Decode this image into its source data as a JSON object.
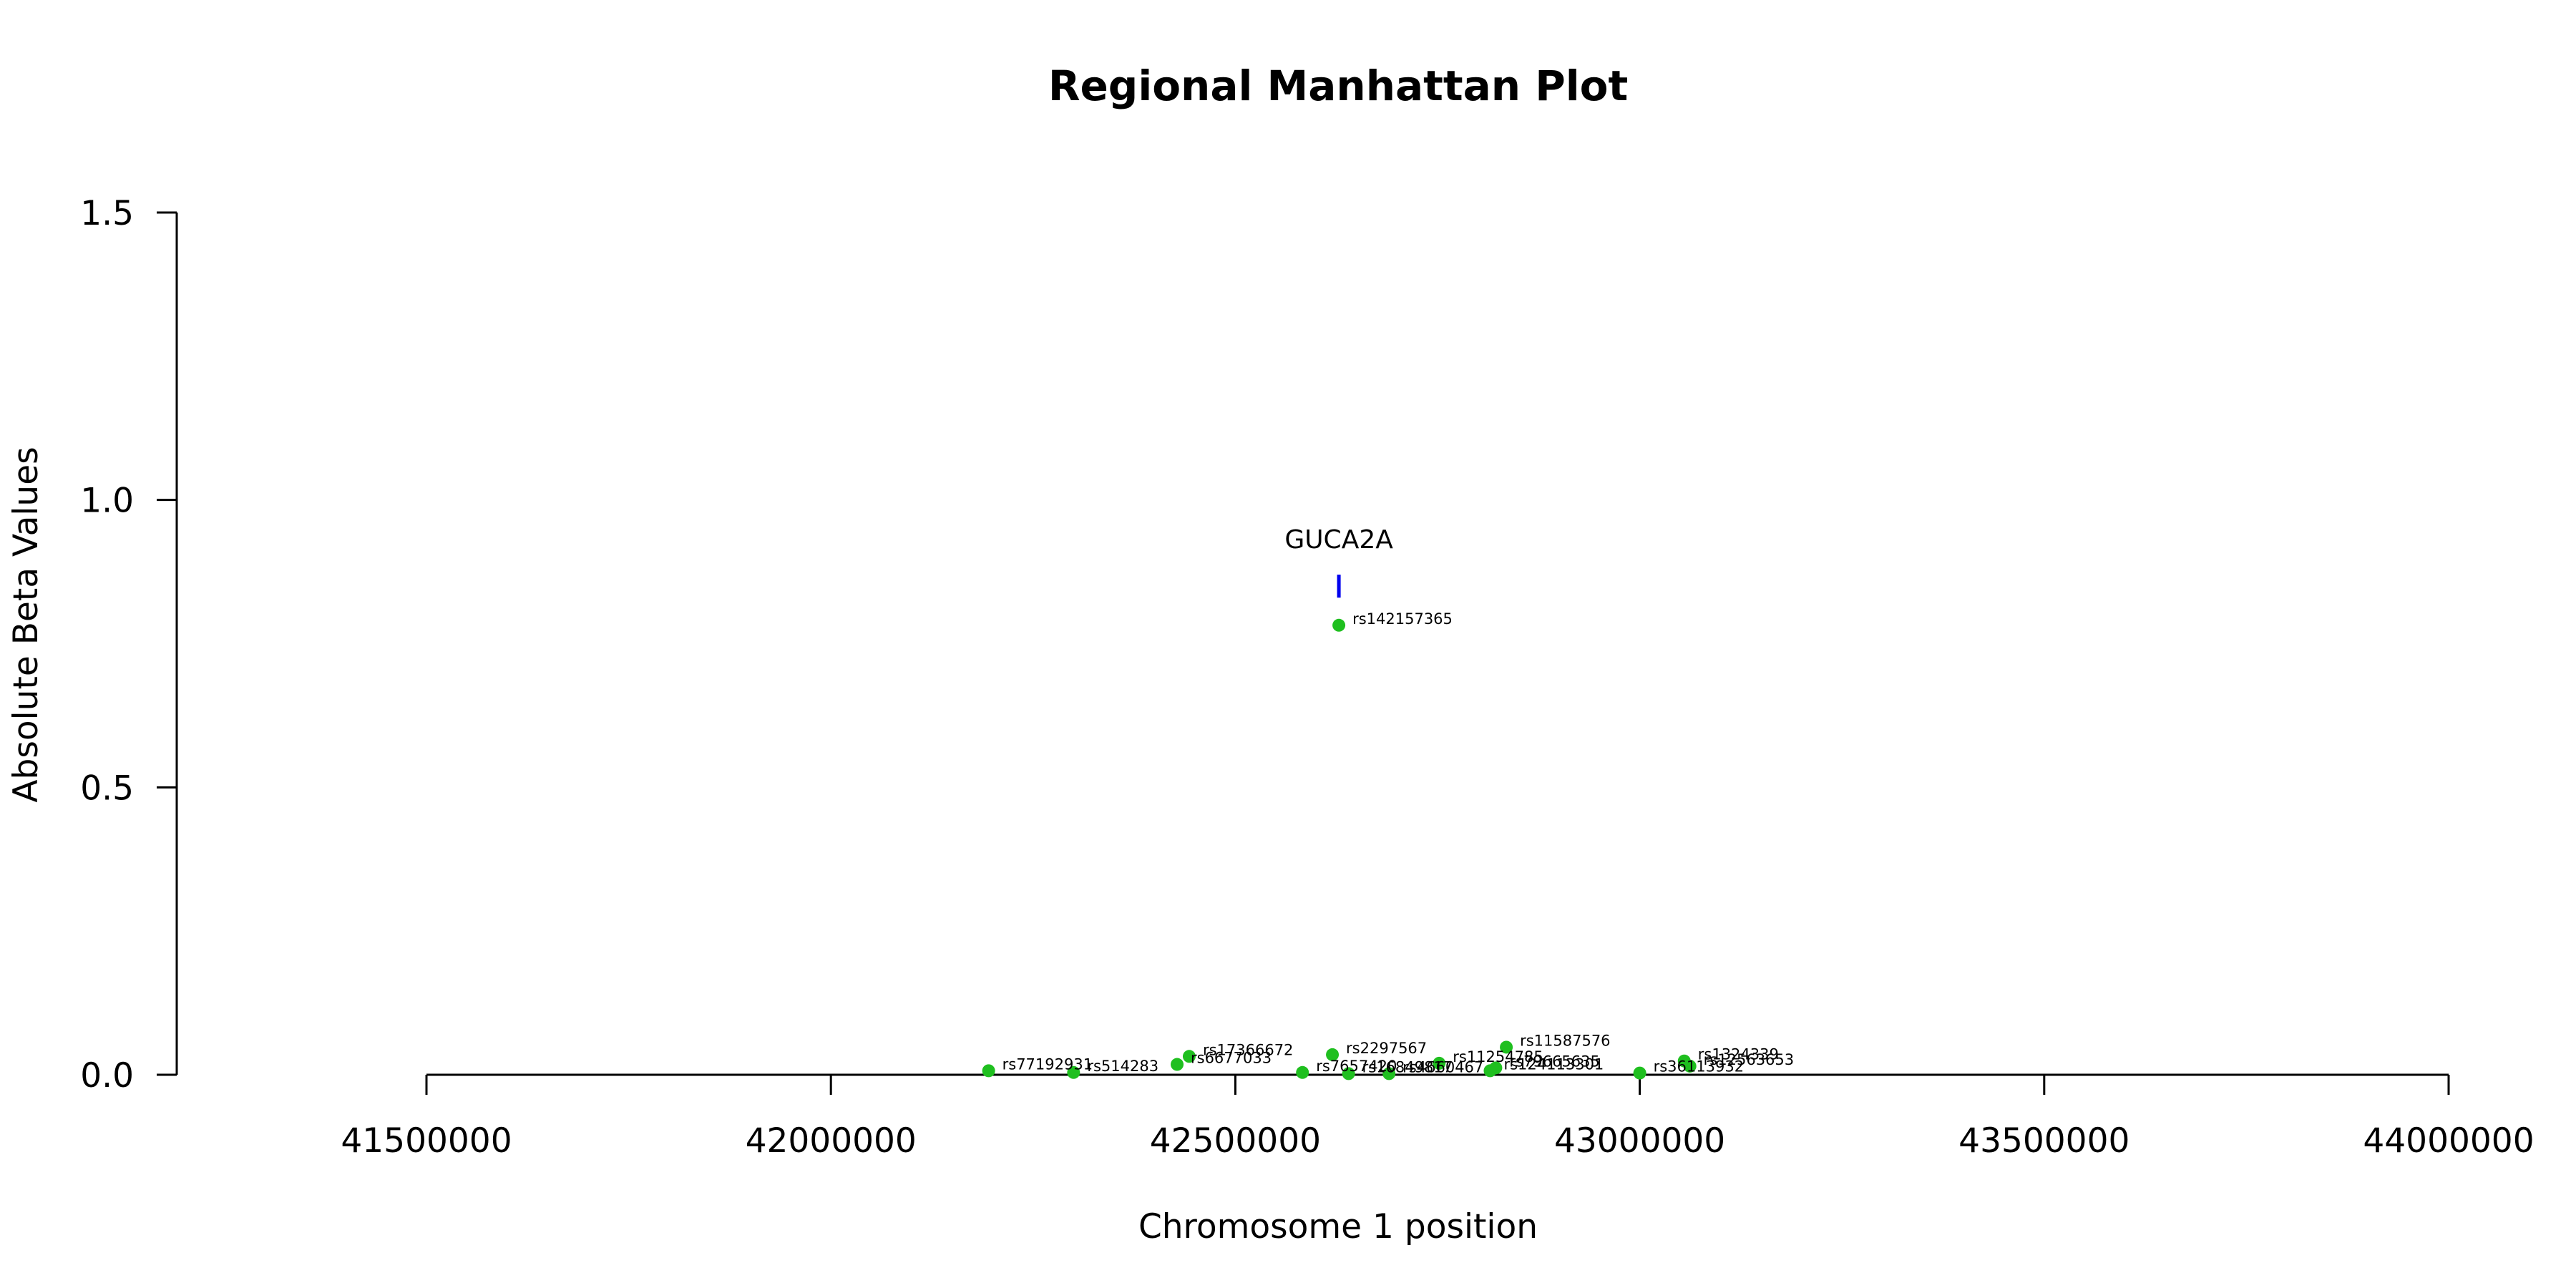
{
  "chart_data": {
    "type": "scatter",
    "title": "Regional Manhattan Plot",
    "xlabel": "Chromosome 1 position",
    "ylabel": "Absolute Beta Values",
    "xlim": [
      41500000,
      44000000
    ],
    "ylim": [
      0,
      1.5
    ],
    "x_ticks": [
      41500000,
      42000000,
      42500000,
      43000000,
      43500000,
      44000000
    ],
    "x_tick_labels": [
      "41500000",
      "42000000",
      "42500000",
      "43000000",
      "43500000",
      "44000000"
    ],
    "y_ticks": [
      0.0,
      0.5,
      1.0,
      1.5
    ],
    "y_tick_labels": [
      "0.0",
      "0.5",
      "1.0",
      "1.5"
    ],
    "point_color": "#1FBF1F",
    "gene_color": "#0000EE",
    "genes": [
      {
        "name": "GUCA2A",
        "position": 42628000,
        "marker_y": [
          0.83,
          0.87
        ]
      }
    ],
    "points": [
      {
        "label": "rs142157365",
        "x": 42628000,
        "y": 0.782
      },
      {
        "label": "rs11587576",
        "x": 42835000,
        "y": 0.048
      },
      {
        "label": "rs2297567",
        "x": 42620000,
        "y": 0.035
      },
      {
        "label": "rs17366672",
        "x": 42443000,
        "y": 0.032
      },
      {
        "label": "rs6677033",
        "x": 42428000,
        "y": 0.018
      },
      {
        "label": "rs1324339",
        "x": 43055000,
        "y": 0.024
      },
      {
        "label": "rs12563653",
        "x": 43062000,
        "y": 0.015
      },
      {
        "label": "rs77192931",
        "x": 42195000,
        "y": 0.007
      },
      {
        "label": "rs514283",
        "x": 42300000,
        "y": 0.004
      },
      {
        "label": "rs11254785",
        "x": 42752000,
        "y": 0.02
      },
      {
        "label": "rs79665635",
        "x": 42822000,
        "y": 0.012
      },
      {
        "label": "rs124113301",
        "x": 42815000,
        "y": 0.007
      },
      {
        "label": "rs7657420",
        "x": 42583000,
        "y": 0.004
      },
      {
        "label": "rs16849817",
        "x": 42640000,
        "y": 0.002
      },
      {
        "label": "rs4660467",
        "x": 42690000,
        "y": 0.002
      },
      {
        "label": "rs36113932",
        "x": 43000000,
        "y": 0.003
      }
    ]
  }
}
